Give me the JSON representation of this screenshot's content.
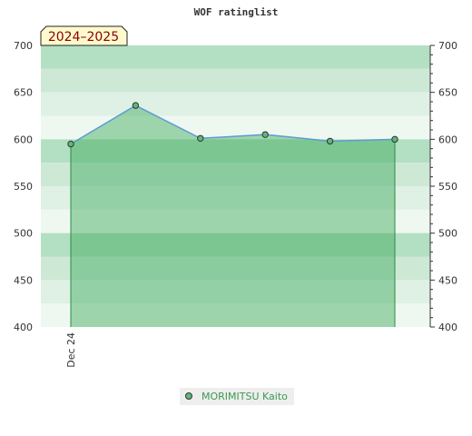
{
  "chart_data": {
    "type": "area",
    "title": "WOF ratinglist",
    "badge": "2024–2025",
    "ylim": [
      400,
      700
    ],
    "y_ticks": [
      400,
      450,
      500,
      550,
      600,
      650,
      700
    ],
    "x_tick_labels": [
      "Dec 24"
    ],
    "legend_position": "bottom-center",
    "series": [
      {
        "name": "MORIMITSU Kaito",
        "values": [
          595,
          636,
          601,
          605,
          598,
          600
        ]
      }
    ],
    "colors": {
      "line": "#5b9bd5",
      "marker": "#3a8a50",
      "area": "#3aa858",
      "band_dark": "#b3dfc2",
      "band_mid": "#cde9d6",
      "band_light": "#def1e4",
      "band_lightest": "#eef8f1",
      "badge_fill": "#fffacd",
      "badge_text": "#8b0000",
      "legend_text": "#3a9a50"
    }
  }
}
